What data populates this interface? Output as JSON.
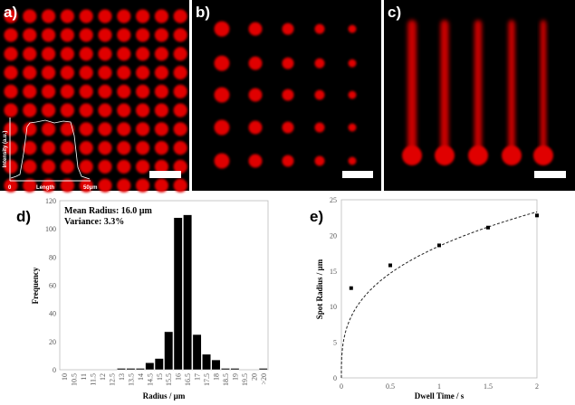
{
  "panels": {
    "a": {
      "label": "a)",
      "inset": {
        "ylabel": "Intensity (a.u.)",
        "xlabel": "Length",
        "x_start": "0",
        "x_end": "50µm"
      }
    },
    "b": {
      "label": "b)"
    },
    "c": {
      "label": "c)"
    },
    "d": {
      "label": "d)"
    },
    "e": {
      "label": "e)"
    }
  },
  "colors": {
    "spot": "#e00000",
    "background": "#000000",
    "scalebar": "#ffffff"
  },
  "chart_data": [
    {
      "type": "bar",
      "annotations": [
        "Mean Radius: 16.0 µm",
        "Variance: 3.3%"
      ],
      "xlabel": "Radius / µm",
      "ylabel": "Frequency",
      "ylim": [
        0,
        120
      ],
      "yticks": [
        0,
        20,
        40,
        60,
        80,
        100,
        120
      ],
      "categories": [
        "10",
        "10.5",
        "11",
        "11.5",
        "12",
        "12.5",
        "13",
        "13.5",
        "14",
        "14.5",
        "15",
        "15.5",
        "16",
        "16.5",
        "17",
        "17.5",
        "18",
        "18.5",
        "19",
        "19.5",
        "20",
        ">20"
      ],
      "values": [
        0,
        0,
        0,
        0,
        0,
        0,
        1,
        1,
        1,
        5,
        8,
        27,
        108,
        110,
        25,
        11,
        7,
        1,
        1,
        0,
        0,
        1
      ],
      "grid": false
    },
    {
      "type": "scatter",
      "xlabel": "Dwell Time / s",
      "ylabel": "Spot Radius / µm",
      "xlim": [
        0,
        2
      ],
      "ylim": [
        0,
        25
      ],
      "xticks": [
        0,
        0.5,
        1,
        1.5,
        2
      ],
      "yticks": [
        0,
        5,
        10,
        15,
        20,
        25
      ],
      "points": [
        {
          "x": 0.1,
          "y": 12.6
        },
        {
          "x": 0.5,
          "y": 15.8
        },
        {
          "x": 1,
          "y": 18.6
        },
        {
          "x": 1.5,
          "y": 21.1
        },
        {
          "x": 2,
          "y": 22.8
        }
      ],
      "fit": {
        "style": "dashed",
        "form": "y = 18.5 * x^(1/3)"
      },
      "grid": false
    }
  ]
}
